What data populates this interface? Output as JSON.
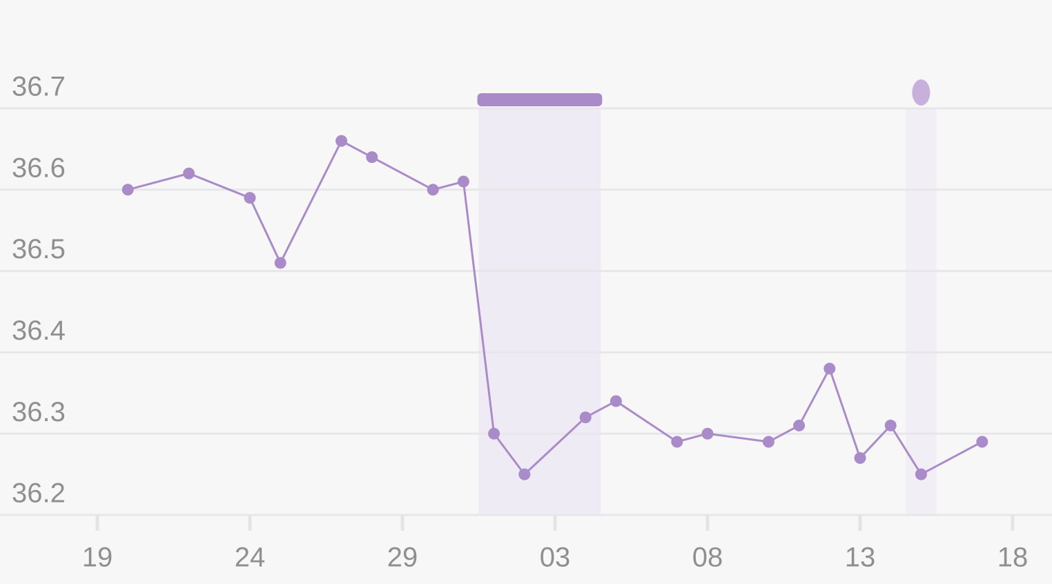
{
  "chart_data": {
    "type": "line",
    "x": [
      1,
      3,
      5,
      6,
      8,
      9,
      11,
      12,
      13,
      14,
      16,
      17,
      19,
      20,
      22,
      23,
      24,
      25,
      26,
      27,
      29
    ],
    "series": [
      {
        "color": "#a98bca",
        "values": [
          36.6,
          36.62,
          36.59,
          36.51,
          36.66,
          36.64,
          36.6,
          36.61,
          36.3,
          36.25,
          36.32,
          36.34,
          36.29,
          36.3,
          36.29,
          36.31,
          36.38,
          36.27,
          36.31,
          36.25,
          36.29
        ]
      }
    ],
    "xlim": [
      0,
      30
    ],
    "xticks": [
      {
        "value": 0,
        "label": "19"
      },
      {
        "value": 5,
        "label": "24"
      },
      {
        "value": 10,
        "label": "29"
      },
      {
        "value": 15,
        "label": "03"
      },
      {
        "value": 20,
        "label": "08"
      },
      {
        "value": 25,
        "label": "13"
      },
      {
        "value": 30,
        "label": "18"
      }
    ],
    "ylim": [
      36.2,
      36.7
    ],
    "yticks": [
      36.2,
      36.3,
      36.4,
      36.5,
      36.6,
      36.7
    ],
    "grid": true,
    "shaded_ranges": [
      {
        "start": 12.5,
        "end": 16.5,
        "color": "#efebf4",
        "marker_color": "#aa8bc9"
      },
      {
        "start": 26.5,
        "end": 27.5,
        "color": "#f1eef6",
        "marker_color": "#c8b0dd"
      }
    ]
  }
}
